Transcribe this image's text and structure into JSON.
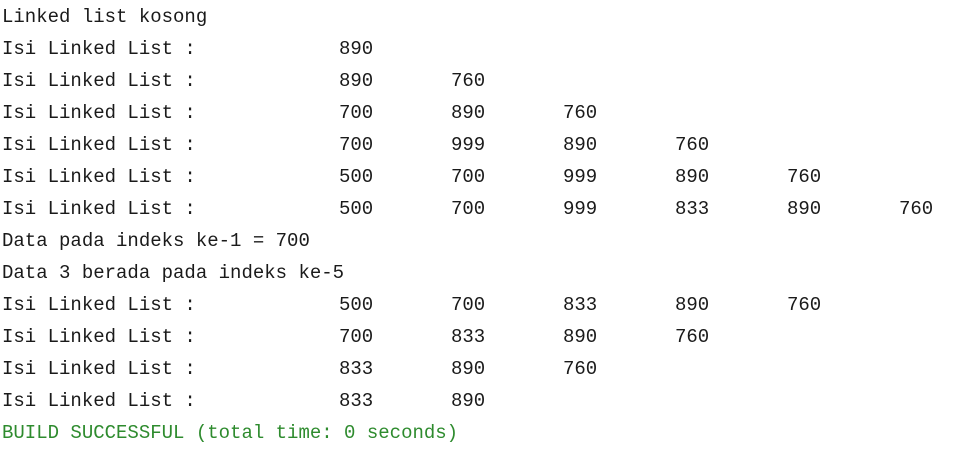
{
  "console": {
    "lines": [
      {
        "kind": "text",
        "text": "Linked list kosong"
      },
      {
        "kind": "list",
        "label": "Isi Linked List :",
        "values": [
          "890"
        ]
      },
      {
        "kind": "list",
        "label": "Isi Linked List :",
        "values": [
          "890",
          "760"
        ]
      },
      {
        "kind": "list",
        "label": "Isi Linked List :",
        "values": [
          "700",
          "890",
          "760"
        ]
      },
      {
        "kind": "list",
        "label": "Isi Linked List :",
        "values": [
          "700",
          "999",
          "890",
          "760"
        ]
      },
      {
        "kind": "list",
        "label": "Isi Linked List :",
        "values": [
          "500",
          "700",
          "999",
          "890",
          "760"
        ]
      },
      {
        "kind": "list",
        "label": "Isi Linked List :",
        "values": [
          "500",
          "700",
          "999",
          "833",
          "890",
          "760"
        ]
      },
      {
        "kind": "text",
        "text": "Data pada indeks ke-1 = 700"
      },
      {
        "kind": "text",
        "text": "Data 3 berada pada indeks ke-5"
      },
      {
        "kind": "list",
        "label": "Isi Linked List :",
        "values": [
          "500",
          "700",
          "833",
          "890",
          "760"
        ]
      },
      {
        "kind": "list",
        "label": "Isi Linked List :",
        "values": [
          "700",
          "833",
          "890",
          "760"
        ]
      },
      {
        "kind": "list",
        "label": "Isi Linked List :",
        "values": [
          "833",
          "890",
          "760"
        ]
      },
      {
        "kind": "list",
        "label": "Isi Linked List :",
        "values": [
          "833",
          "890"
        ]
      }
    ],
    "build_status": "BUILD SUCCESSFUL (total time: 0 seconds)",
    "build_status_color": "#2e8b2e"
  }
}
